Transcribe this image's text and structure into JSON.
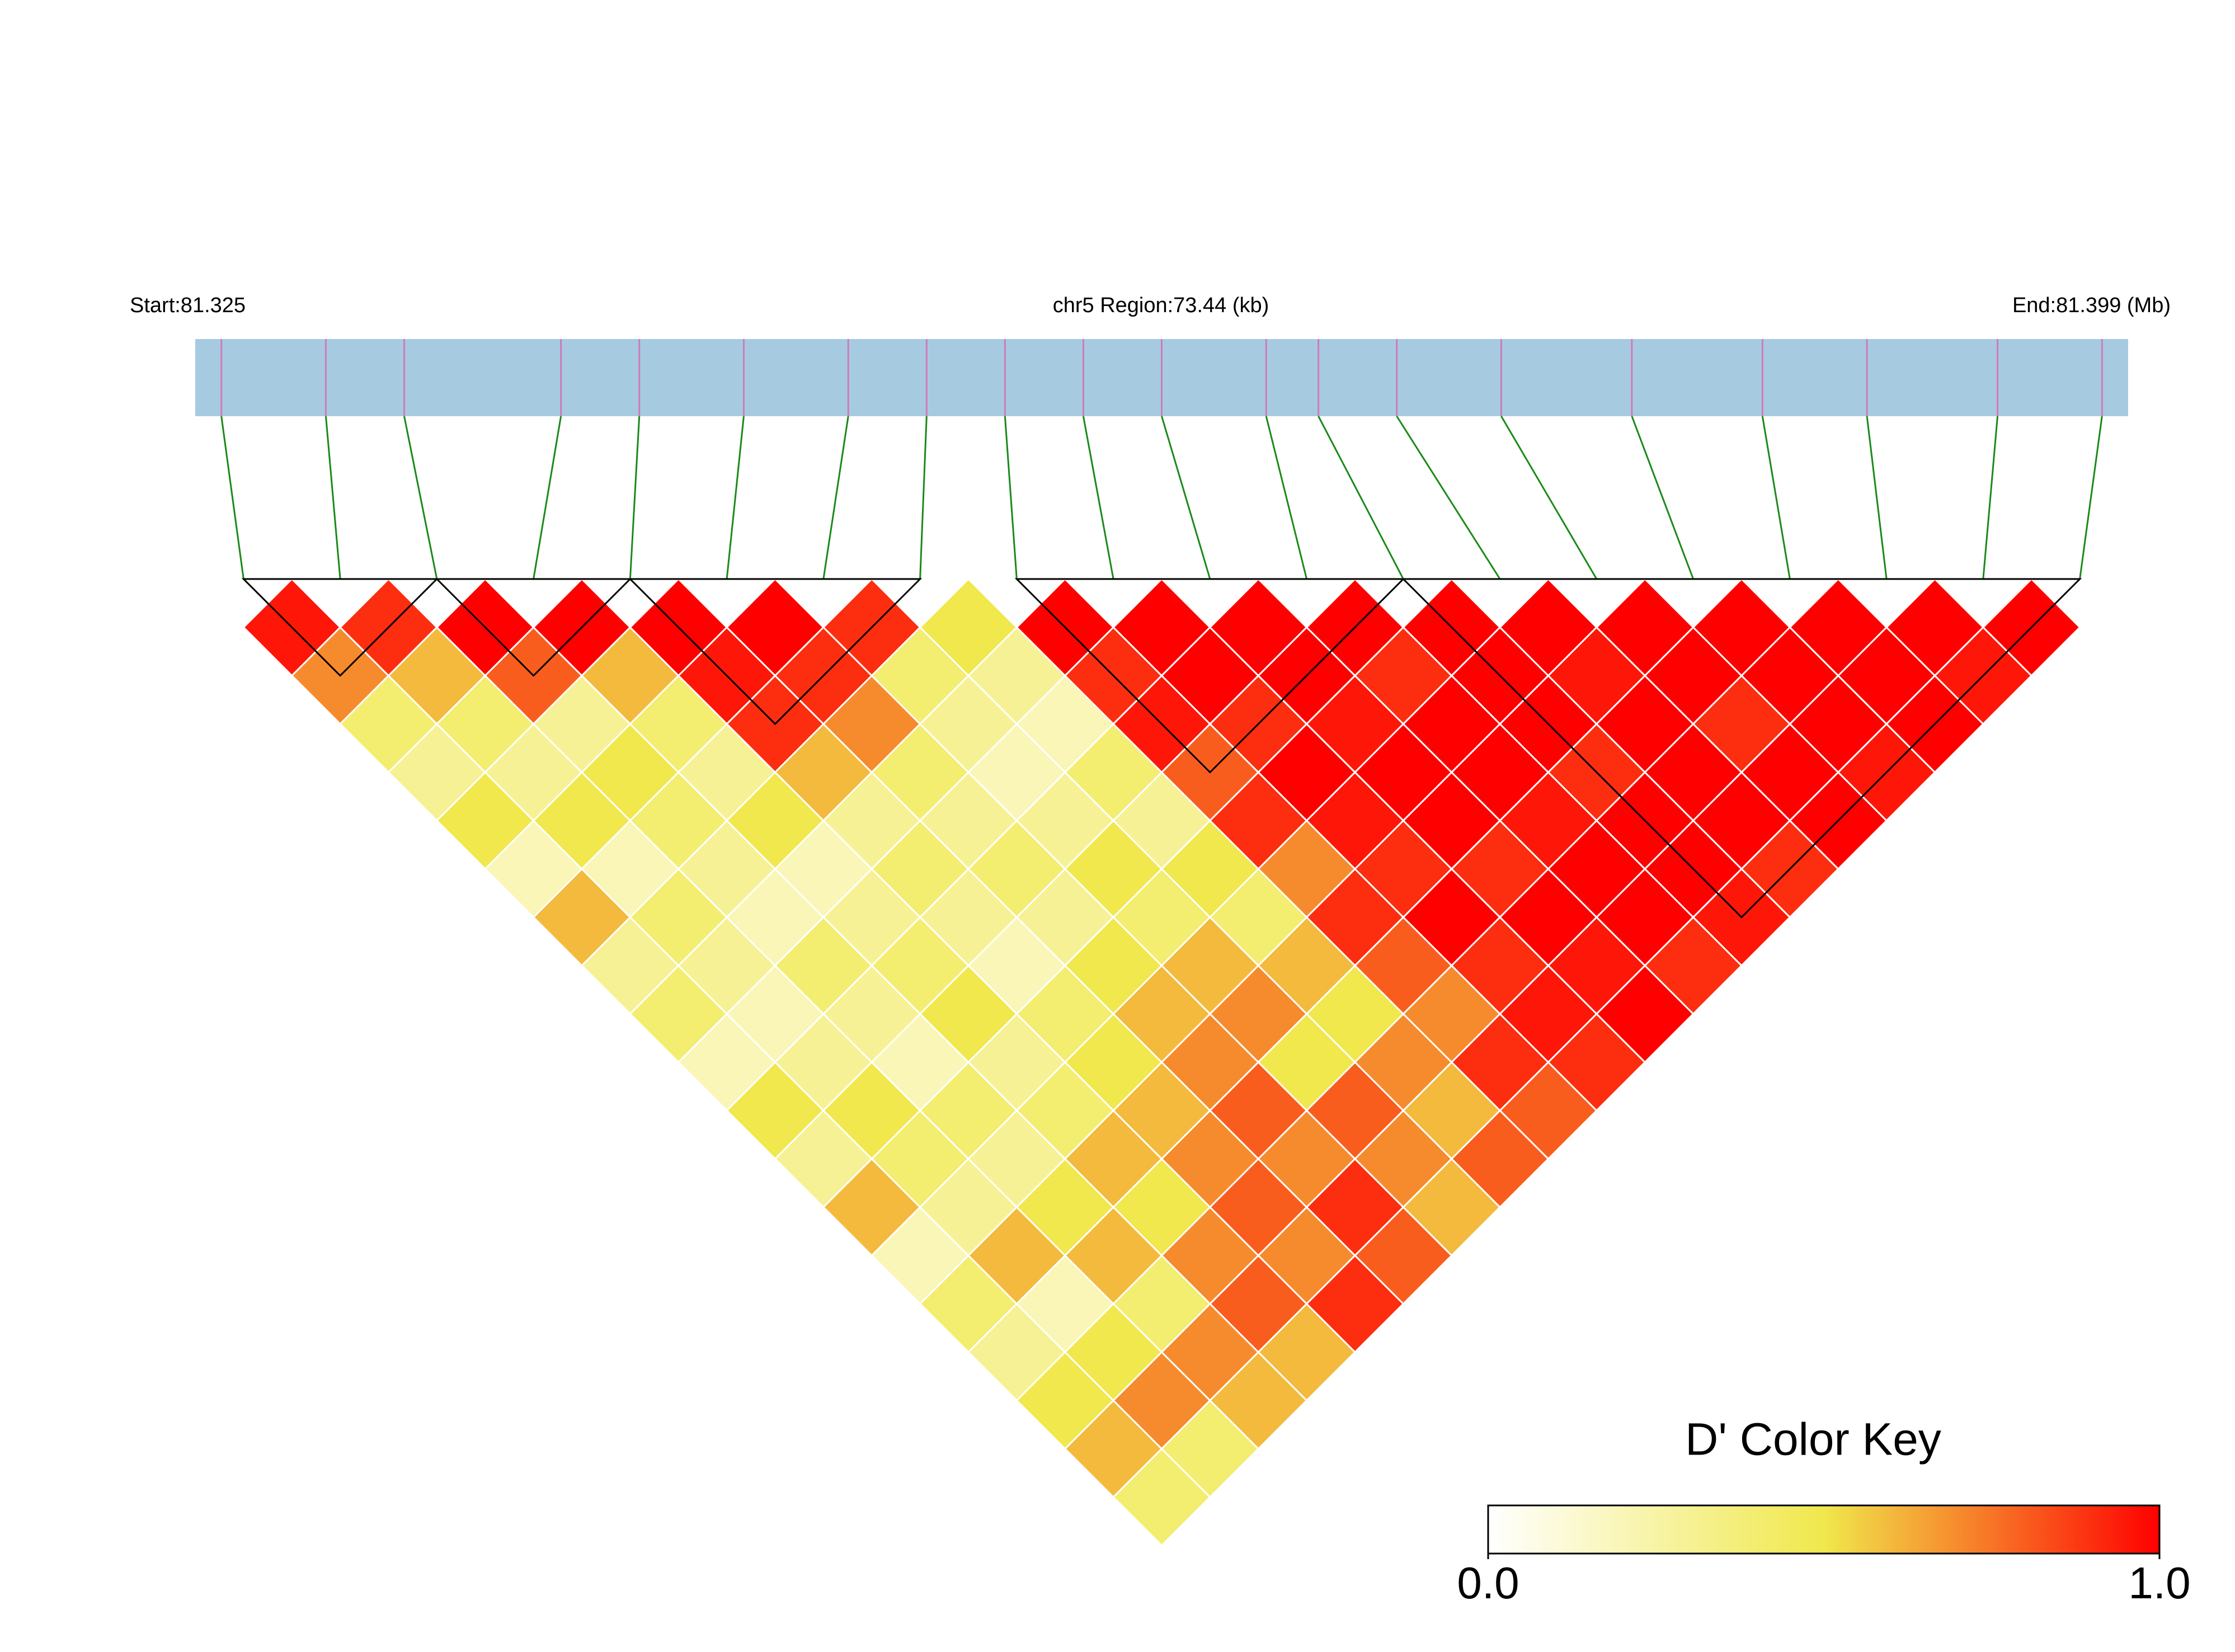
{
  "chart_data": {
    "type": "ld_heatmap",
    "start_label": "Start:81.325",
    "region_label": "chr5 Region:73.44 (kb)",
    "end_label": "End:81.399 (Mb)",
    "xlim": [
      81.325,
      81.399
    ],
    "snp_positions": [
      81.326,
      81.33,
      81.333,
      81.339,
      81.342,
      81.346,
      81.35,
      81.353,
      81.356,
      81.359,
      81.362,
      81.366,
      81.368,
      81.371,
      81.375,
      81.38,
      81.385,
      81.389,
      81.394,
      81.398
    ],
    "track_color": "#a6cbe0",
    "snp_color": "#d07ab8",
    "connector_color": "#1a8a1a",
    "ld": [
      [
        0.95,
        0.7,
        0.4,
        0.3,
        0.5,
        0.2,
        0.6,
        0.3,
        0.4,
        0.2,
        0.5,
        0.3,
        0.6,
        0.2,
        0.4,
        0.3,
        0.5,
        0.6,
        0.4
      ],
      [
        0.9,
        0.6,
        0.4,
        0.3,
        0.5,
        0.2,
        0.4,
        0.3,
        0.2,
        0.3,
        0.5,
        0.4,
        0.3,
        0.6,
        0.2,
        0.5,
        0.7,
        0.4
      ],
      [
        1,
        0.8,
        0.3,
        0.5,
        0.4,
        0.3,
        0.2,
        0.4,
        0.3,
        0.2,
        0.4,
        0.3,
        0.5,
        0.6,
        0.4,
        0.7,
        0.6
      ],
      [
        1,
        0.6,
        0.4,
        0.3,
        0.5,
        0.2,
        0.3,
        0.4,
        0.5,
        0.3,
        0.4,
        0.6,
        0.5,
        0.7,
        0.8,
        0.6
      ],
      [
        1,
        0.95,
        0.9,
        0.6,
        0.3,
        0.4,
        0.3,
        0.2,
        0.4,
        0.5,
        0.6,
        0.7,
        0.8,
        0.7,
        0.9
      ],
      [
        1,
        0.9,
        0.7,
        0.4,
        0.3,
        0.4,
        0.3,
        0.5,
        0.6,
        0.7,
        0.8,
        0.7,
        0.9,
        0.8
      ],
      [
        0.9,
        0.4,
        0.3,
        0.2,
        0.3,
        0.5,
        0.4,
        0.6,
        0.7,
        0.5,
        0.8,
        0.7,
        0.6
      ],
      [
        0.5,
        0.3,
        0.2,
        0.4,
        0.3,
        0.5,
        0.4,
        0.6,
        0.5,
        0.7,
        0.6,
        0.8
      ],
      [
        1,
        0.9,
        0.95,
        0.8,
        0.9,
        0.7,
        0.9,
        0.8,
        0.7,
        0.9,
        0.8
      ],
      [
        1,
        1,
        0.9,
        1,
        0.95,
        0.9,
        1,
        0.9,
        0.95,
        0.9
      ],
      [
        1,
        1,
        0.95,
        1,
        1,
        0.9,
        1,
        0.95,
        1
      ],
      [
        1,
        0.9,
        1,
        1,
        0.95,
        1,
        1,
        0.9
      ],
      [
        1,
        1,
        1,
        0.9,
        1,
        1,
        0.95
      ],
      [
        1,
        0.95,
        1,
        1,
        1,
        0.9
      ],
      [
        1,
        1,
        0.9,
        1,
        1
      ],
      [
        1,
        1,
        1,
        0.95
      ],
      [
        1,
        1,
        1
      ],
      [
        1,
        0.95
      ],
      [
        1
      ]
    ],
    "blocks": [
      [
        0,
        2
      ],
      [
        2,
        4
      ],
      [
        4,
        7
      ],
      [
        8,
        12
      ],
      [
        12,
        19
      ]
    ],
    "colorscale": [
      "#ffffff",
      "#f0e84c",
      "#ff0000"
    ],
    "key_title": "D' Color Key",
    "key_lim": [
      0,
      1
    ],
    "key_ticks": [
      {
        "value": 0,
        "label": "0.0"
      },
      {
        "value": 1,
        "label": "1.0"
      }
    ]
  }
}
